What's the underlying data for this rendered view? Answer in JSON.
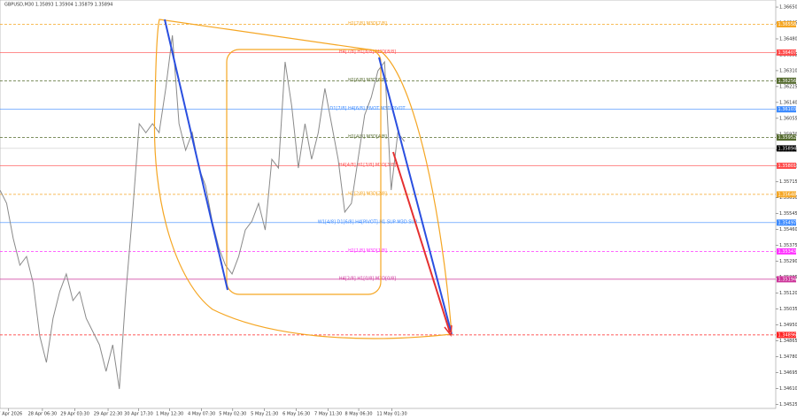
{
  "chart_data": {
    "type": "line",
    "title": "GBPUSD,M30  1.35893 1.35904 1.35879 1.35894",
    "color": "#8a8a8a",
    "values": [
      1.35671,
      1.356,
      1.35411,
      1.35269,
      1.35316,
      1.35174,
      1.3489,
      1.34749,
      1.34985,
      1.35127,
      1.35222,
      1.3508,
      1.35127,
      1.34985,
      1.34914,
      1.34843,
      1.34701,
      1.34843,
      1.34607,
      1.35127,
      1.35553,
      1.36026,
      1.35978,
      1.36026,
      1.35978,
      1.36215,
      1.36499,
      1.36026,
      1.35884,
      1.35978,
      1.35789,
      1.35695,
      1.35505,
      1.35363,
      1.35269,
      1.35222,
      1.35316,
      1.35458,
      1.35505,
      1.356,
      1.35458,
      1.35836,
      1.35789,
      1.36357,
      1.3612,
      1.35789,
      1.36026,
      1.35836,
      1.35978,
      1.36215,
      1.36026,
      1.35836,
      1.35553,
      1.356,
      1.35836,
      1.36073,
      1.36168,
      1.36309,
      1.36357,
      1.35671,
      1.35978,
      1.35931
    ],
    "xlim": [
      0,
      117
    ],
    "xticks": [
      {
        "value": 1.3,
        "label": "27 Apr 2026"
      },
      {
        "value": 6.4,
        "label": "28 Apr 06:30"
      },
      {
        "value": 11.3,
        "label": "29 Apr 03:30"
      },
      {
        "value": 16.3,
        "label": "29 Apr 22:30"
      },
      {
        "value": 20.9,
        "label": "30 Apr 17:30"
      },
      {
        "value": 25.6,
        "label": "1 May 12:30"
      },
      {
        "value": 30.4,
        "label": "4 May 07:30"
      },
      {
        "value": 35.1,
        "label": "5 May 02:30"
      },
      {
        "value": 39.9,
        "label": "5 May 21:30"
      },
      {
        "value": 44.7,
        "label": "6 May 16:30"
      },
      {
        "value": 49.5,
        "label": "7 May 11:30"
      },
      {
        "value": 54.1,
        "label": "8 May 06:30"
      },
      {
        "value": 59.1,
        "label": "11 May 01:30"
      }
    ],
    "ylim": [
      1.34503,
      1.36688
    ],
    "yticks": [
      {
        "value": 1.3665,
        "label": "1.36650"
      },
      {
        "value": 1.36565,
        "label": "1.36565"
      },
      {
        "value": 1.3648,
        "label": "1.36480"
      },
      {
        "value": 1.36395,
        "label": "1.36395"
      },
      {
        "value": 1.3631,
        "label": "1.36310"
      },
      {
        "value": 1.36225,
        "label": "1.36225"
      },
      {
        "value": 1.3614,
        "label": "1.36140"
      },
      {
        "value": 1.36055,
        "label": "1.36055"
      },
      {
        "value": 1.3597,
        "label": "1.35970"
      },
      {
        "value": 1.35885,
        "label": "1.35885"
      },
      {
        "value": 1.358,
        "label": "1.35800"
      },
      {
        "value": 1.35715,
        "label": "1.35715"
      },
      {
        "value": 1.3563,
        "label": "1.35630"
      },
      {
        "value": 1.35545,
        "label": "1.35545"
      },
      {
        "value": 1.3546,
        "label": "1.35460"
      },
      {
        "value": 1.35375,
        "label": "1.35375"
      },
      {
        "value": 1.3529,
        "label": "1.35290"
      },
      {
        "value": 1.35205,
        "label": "1.35205"
      },
      {
        "value": 1.3512,
        "label": "1.35120"
      },
      {
        "value": 1.35035,
        "label": "1.35035"
      },
      {
        "value": 1.3495,
        "label": "1.34950"
      },
      {
        "value": 1.34865,
        "label": "1.34865"
      },
      {
        "value": 1.3478,
        "label": "1.34780"
      },
      {
        "value": 1.34695,
        "label": "1.34695"
      },
      {
        "value": 1.3461,
        "label": "1.34610"
      },
      {
        "value": 1.34525,
        "label": "1.34525"
      }
    ],
    "current_price": 1.35894,
    "levels": [
      {
        "label": "H1[7/8] M3D[7/8]",
        "price": 1.36558,
        "color": "#f5a623"
      },
      {
        "label": "H4[7/8] H1[8/8] M3D[8/8]",
        "price": 1.36407,
        "color": "#ff4b4b"
      },
      {
        "label": "H1[6/8] M3D[6/8]",
        "price": 1.36256,
        "color": "#556b2f"
      },
      {
        "label": "D1[7/8] H4[6/8] PIVOT M3D PIVOT",
        "price": 1.36103,
        "color": "#3d8bff"
      },
      {
        "label": "H1[4/8] M3D[4/8]",
        "price": 1.35952,
        "color": "#556b2f"
      },
      {
        "label": "H4[4/8] H1[3/8] M3D[3/8]",
        "price": 1.35801,
        "color": "#ff4b4b"
      },
      {
        "label": "H1[2/8] M3D[2/8]",
        "price": 1.35648,
        "color": "#f5a623"
      },
      {
        "label": "W1[4/8] D1[6/8] H4[PIVOT] H1 SUP M3D SUP",
        "price": 1.35497,
        "color": "#3d8bff"
      },
      {
        "label": "H1[1/8] M3D[1/8]",
        "price": 1.35343,
        "color": "#ff33ff"
      },
      {
        "label": "H4[2/8] H1[0/8] M3D[0/8]",
        "price": 1.35194,
        "color": "#cc3399"
      },
      {
        "price": 1.34896,
        "color": "#ff2222"
      }
    ]
  }
}
